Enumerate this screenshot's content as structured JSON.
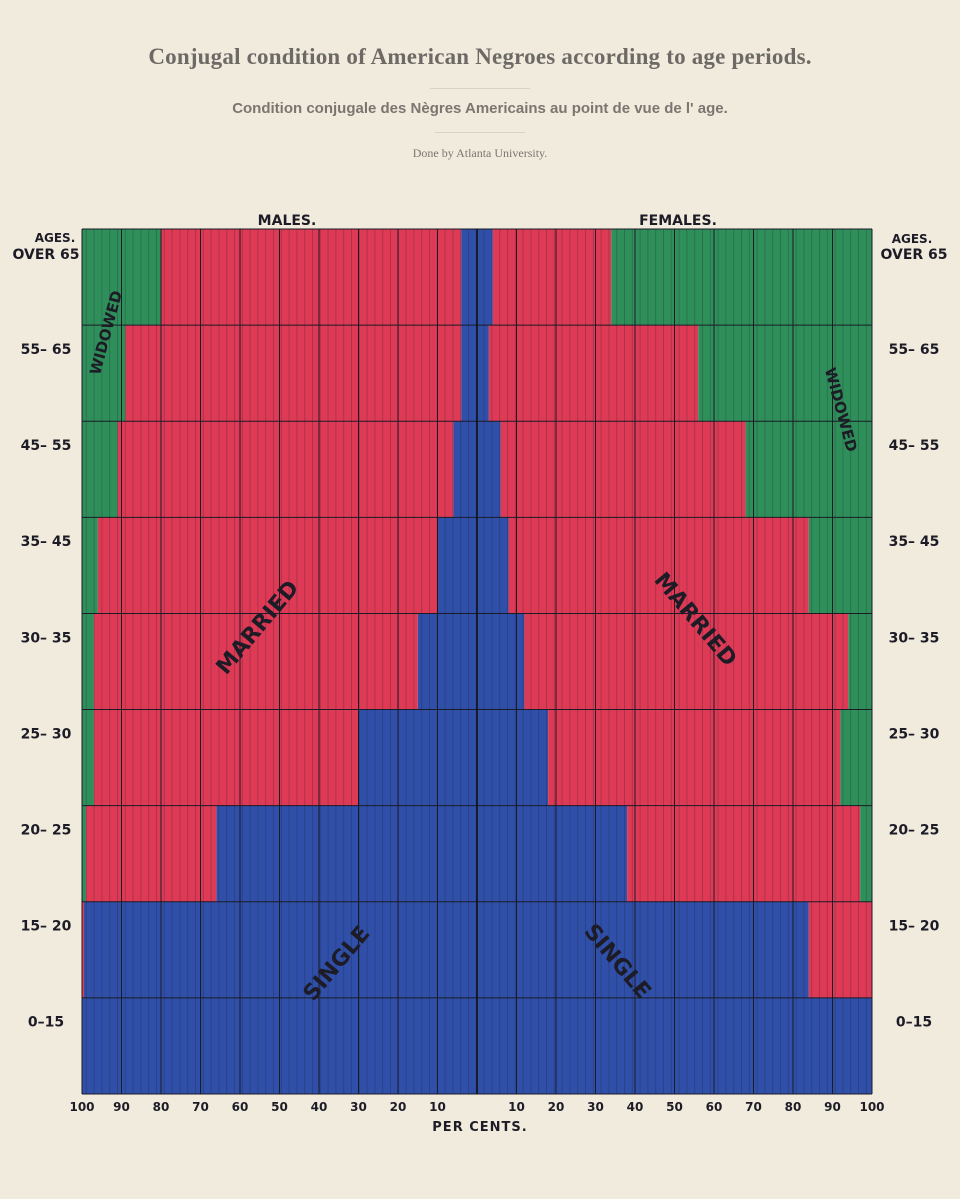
{
  "title": "Conjugal condition of American Negroes according to age periods.",
  "subtitle": "Condition conjugale des Nègres Americains au point de vue de l' age.",
  "credit": "Done by Atlanta University.",
  "colors": {
    "single": "#2f4fa8",
    "married": "#df3a55",
    "widowed": "#2f8f5a",
    "paper": "#f1ebde"
  },
  "chart_data": {
    "type": "bar",
    "layout": "back-to-back stacked horizontal (population pyramid)",
    "left_heading": "MALES.",
    "right_heading": "FEMALES.",
    "age_heading": "AGES.",
    "xlabel": "PER CENTS.",
    "x_ticks_left": [
      "100",
      "90",
      "80",
      "70",
      "60",
      "50",
      "40",
      "30",
      "20",
      "10"
    ],
    "x_ticks_right": [
      "10",
      "20",
      "30",
      "40",
      "50",
      "60",
      "70",
      "80",
      "90",
      "100"
    ],
    "xlim": [
      0,
      100
    ],
    "categories": [
      "OVER 65",
      "55– 65",
      "45– 55",
      "35– 45",
      "30– 35",
      "25– 30",
      "20– 25",
      "15– 20",
      "0–15"
    ],
    "males": [
      {
        "name": "Single",
        "values": [
          4,
          4,
          6,
          10,
          15,
          30,
          66,
          99.5,
          100
        ]
      },
      {
        "name": "Married",
        "values": [
          76,
          85,
          85,
          86,
          82,
          67,
          33,
          0.5,
          0
        ]
      },
      {
        "name": "Widowed",
        "values": [
          20,
          11,
          9,
          4,
          3,
          3,
          1,
          0,
          0
        ]
      }
    ],
    "females": [
      {
        "name": "Single",
        "values": [
          4,
          3,
          6,
          8,
          12,
          18,
          38,
          84,
          100
        ]
      },
      {
        "name": "Married",
        "values": [
          30,
          53,
          62,
          76,
          82,
          74,
          59,
          16,
          0
        ]
      },
      {
        "name": "Widowed",
        "values": [
          66,
          44,
          32,
          16,
          6,
          8,
          3,
          0,
          0
        ]
      }
    ],
    "labels": {
      "single": "SINGLE",
      "married": "MARRIED",
      "widowed": "WIDOWED"
    }
  }
}
